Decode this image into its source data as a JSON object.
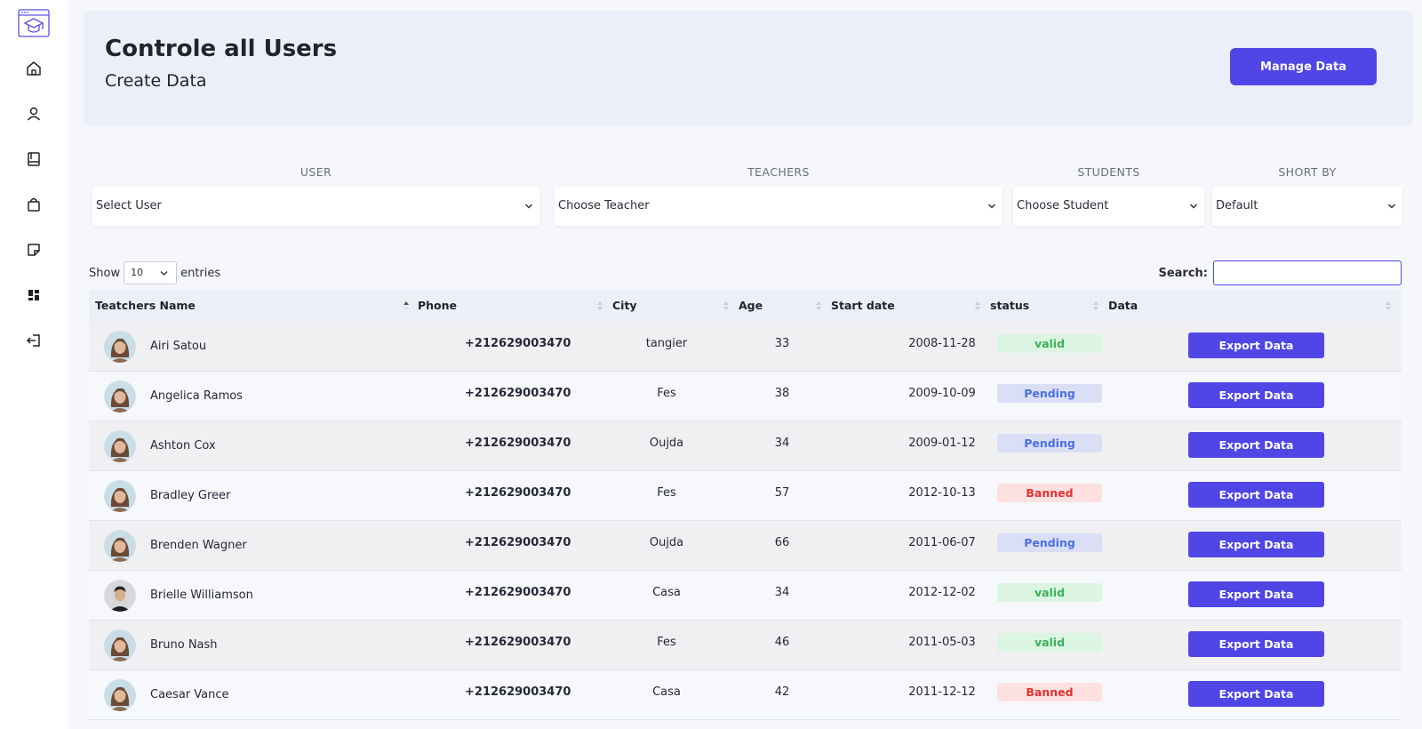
{
  "sidebar": {
    "logo": "graduation-cap-logo",
    "items": [
      {
        "icon": "home-icon"
      },
      {
        "icon": "user-icon"
      },
      {
        "icon": "book-icon"
      },
      {
        "icon": "shopping-bag-icon"
      },
      {
        "icon": "note-icon"
      },
      {
        "icon": "dashboard-icon"
      },
      {
        "icon": "logout-icon"
      }
    ]
  },
  "header": {
    "title": "Controle all Users",
    "subtitle": "Create Data",
    "manage_button": "Manage Data"
  },
  "filters": {
    "user": {
      "label": "USER",
      "value": "Select User"
    },
    "teachers": {
      "label": "TEACHERS",
      "value": "Choose Teacher"
    },
    "students": {
      "label": "STUDENTS",
      "value": "Choose Student"
    },
    "sort": {
      "label": "SHORT BY",
      "value": "Default"
    }
  },
  "table_controls": {
    "show_label": "Show",
    "entries_value": "10",
    "entries_label": "entries",
    "search_label": "Search:",
    "search_value": ""
  },
  "table": {
    "columns": [
      "Teatchers Name",
      "Phone",
      "City",
      "Age",
      "Start date",
      "status",
      "Data"
    ],
    "export_label": "Export Data",
    "rows": [
      {
        "name": "Airi Satou",
        "phone": "+212629003470",
        "city": "tangier",
        "age": "33",
        "date": "2008-11-28",
        "status": "valid",
        "avatar": "woman"
      },
      {
        "name": "Angelica Ramos",
        "phone": "+212629003470",
        "city": "Fes",
        "age": "38",
        "date": "2009-10-09",
        "status": "Pending",
        "avatar": "woman"
      },
      {
        "name": "Ashton Cox",
        "phone": "+212629003470",
        "city": "Oujda",
        "age": "34",
        "date": "2009-01-12",
        "status": "Pending",
        "avatar": "woman"
      },
      {
        "name": "Bradley Greer",
        "phone": "+212629003470",
        "city": "Fes",
        "age": "57",
        "date": "2012-10-13",
        "status": "Banned",
        "avatar": "woman"
      },
      {
        "name": "Brenden Wagner",
        "phone": "+212629003470",
        "city": "Oujda",
        "age": "66",
        "date": "2011-06-07",
        "status": "Pending",
        "avatar": "woman"
      },
      {
        "name": "Brielle Williamson",
        "phone": "+212629003470",
        "city": "Casa",
        "age": "34",
        "date": "2012-12-02",
        "status": "valid",
        "avatar": "man"
      },
      {
        "name": "Bruno Nash",
        "phone": "+212629003470",
        "city": "Fes",
        "age": "46",
        "date": "2011-05-03",
        "status": "valid",
        "avatar": "woman"
      },
      {
        "name": "Caesar Vance",
        "phone": "+212629003470",
        "city": "Casa",
        "age": "42",
        "date": "2011-12-12",
        "status": "Banned",
        "avatar": "woman"
      }
    ]
  },
  "colors": {
    "accent": "#4f46e5",
    "valid": "#3cb05d",
    "pending": "#4a6fe0",
    "banned": "#e03434"
  }
}
